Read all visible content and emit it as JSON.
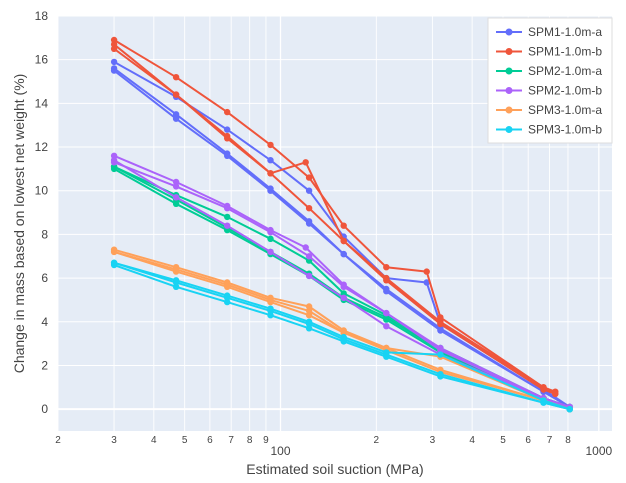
{
  "chart_data": {
    "type": "line",
    "title": "",
    "xlabel": "Estimated soil suction (MPa)",
    "ylabel": "Change in mass based on lowest net weight (%)",
    "xscale": "log",
    "xlim": [
      20,
      1100
    ],
    "ylim": [
      -1,
      18
    ],
    "grid": true,
    "legend_position": "top-right",
    "x_ticks": [
      {
        "value": 20,
        "label": "2",
        "major": false
      },
      {
        "value": 30,
        "label": "3",
        "major": false
      },
      {
        "value": 40,
        "label": "4",
        "major": false
      },
      {
        "value": 50,
        "label": "5",
        "major": false
      },
      {
        "value": 60,
        "label": "6",
        "major": false
      },
      {
        "value": 70,
        "label": "7",
        "major": false
      },
      {
        "value": 80,
        "label": "8",
        "major": false
      },
      {
        "value": 90,
        "label": "9",
        "major": false
      },
      {
        "value": 100,
        "label": "100",
        "major": true
      },
      {
        "value": 200,
        "label": "2",
        "major": false
      },
      {
        "value": 300,
        "label": "3",
        "major": false
      },
      {
        "value": 400,
        "label": "4",
        "major": false
      },
      {
        "value": 500,
        "label": "5",
        "major": false
      },
      {
        "value": 600,
        "label": "6",
        "major": false
      },
      {
        "value": 700,
        "label": "7",
        "major": false
      },
      {
        "value": 800,
        "label": "8",
        "major": false
      },
      {
        "value": 1000,
        "label": "1000",
        "major": true
      }
    ],
    "y_ticks": [
      0,
      2,
      4,
      6,
      8,
      10,
      12,
      14,
      16,
      18
    ],
    "series": [
      {
        "name": "SPM1-1.0m-a",
        "color": "#636efa",
        "lines": [
          {
            "x": [
              30,
              47,
              68,
              93,
              123,
              158,
              215,
              288,
              318,
              670,
              810
            ],
            "y": [
              15.9,
              14.3,
              12.8,
              11.4,
              10.0,
              7.9,
              6.0,
              5.8,
              3.9,
              0.9,
              0.1
            ]
          },
          {
            "x": [
              30,
              47,
              68,
              93,
              123,
              158,
              215,
              318,
              670,
              810
            ],
            "y": [
              15.6,
              13.5,
              11.7,
              10.1,
              8.6,
              7.1,
              5.5,
              3.7,
              0.8,
              0.1
            ]
          },
          {
            "x": [
              30,
              47,
              68,
              93,
              123,
              158,
              215,
              318,
              670,
              810
            ],
            "y": [
              15.5,
              13.3,
              11.6,
              10.0,
              8.5,
              7.1,
              5.4,
              3.6,
              0.8,
              0.1
            ]
          }
        ]
      },
      {
        "name": "SPM1-1.0m-b",
        "color": "#ef553b",
        "lines": [
          {
            "x": [
              30,
              47,
              68,
              93,
              123,
              158,
              215,
              288,
              318,
              670,
              730
            ],
            "y": [
              16.9,
              15.2,
              13.6,
              12.1,
              10.6,
              8.4,
              6.5,
              6.3,
              4.2,
              1.0,
              0.8
            ]
          },
          {
            "x": [
              30,
              47,
              68,
              93,
              123,
              158,
              215,
              318,
              670,
              730
            ],
            "y": [
              16.7,
              14.4,
              12.5,
              10.8,
              9.2,
              7.7,
              6.0,
              4.0,
              1.0,
              0.7
            ]
          },
          {
            "x": [
              30,
              47,
              68,
              93,
              120,
              158,
              215,
              318,
              670,
              730
            ],
            "y": [
              16.5,
              14.4,
              12.4,
              10.8,
              11.3,
              7.7,
              5.9,
              3.9,
              0.9,
              0.7
            ]
          }
        ]
      },
      {
        "name": "SPM2-1.0m-a",
        "color": "#00cc96",
        "lines": [
          {
            "x": [
              30,
              47,
              68,
              93,
              123,
              158,
              215,
              318,
              670,
              810
            ],
            "y": [
              11.1,
              9.6,
              8.3,
              7.2,
              6.2,
              5.1,
              4.2,
              2.7,
              0.5,
              0.1
            ]
          },
          {
            "x": [
              30,
              47,
              68,
              93,
              123,
              158,
              215,
              318,
              670,
              810
            ],
            "y": [
              11.0,
              9.4,
              8.2,
              7.1,
              6.1,
              5.0,
              4.1,
              2.6,
              0.5,
              0.1
            ]
          },
          {
            "x": [
              30,
              47,
              68,
              93,
              123,
              158,
              215,
              318,
              670,
              810
            ],
            "y": [
              11.1,
              9.8,
              8.8,
              7.8,
              6.8,
              5.3,
              4.3,
              2.8,
              0.5,
              0.1
            ]
          }
        ]
      },
      {
        "name": "SPM2-1.0m-b",
        "color": "#ab63fa",
        "lines": [
          {
            "x": [
              30,
              47,
              68,
              93,
              120,
              158,
              215,
              318,
              670,
              810
            ],
            "y": [
              11.6,
              10.4,
              9.3,
              8.2,
              7.4,
              5.7,
              4.4,
              2.8,
              0.5,
              0.1
            ]
          },
          {
            "x": [
              30,
              47,
              68,
              93,
              123,
              158,
              215,
              318,
              670,
              810
            ],
            "y": [
              11.4,
              9.7,
              8.4,
              7.2,
              6.1,
              5.1,
              3.8,
              2.5,
              0.5,
              0.1
            ]
          },
          {
            "x": [
              30,
              47,
              68,
              93,
              123,
              158,
              215,
              318,
              670,
              810
            ],
            "y": [
              11.3,
              10.2,
              9.2,
              8.1,
              7.0,
              5.6,
              4.4,
              2.7,
              0.5,
              0.1
            ]
          }
        ]
      },
      {
        "name": "SPM3-1.0m-a",
        "color": "#ffa15a",
        "lines": [
          {
            "x": [
              30,
              47,
              68,
              93,
              123,
              158,
              215,
              318,
              670,
              810
            ],
            "y": [
              7.3,
              6.5,
              5.8,
              5.1,
              4.7,
              3.6,
              2.8,
              1.8,
              0.4,
              0.0
            ]
          },
          {
            "x": [
              30,
              47,
              68,
              93,
              123,
              158,
              215,
              318,
              670,
              810
            ],
            "y": [
              7.2,
              6.3,
              5.6,
              4.9,
              4.3,
              3.5,
              2.7,
              1.7,
              0.4,
              0.0
            ]
          },
          {
            "x": [
              30,
              47,
              68,
              93,
              123,
              158,
              215,
              318,
              670,
              810
            ],
            "y": [
              7.2,
              6.4,
              5.7,
              5.0,
              4.5,
              3.5,
              2.8,
              2.4,
              0.4,
              0.0
            ]
          }
        ]
      },
      {
        "name": "SPM3-1.0m-b",
        "color": "#19d3f3",
        "lines": [
          {
            "x": [
              30,
              47,
              68,
              93,
              123,
              158,
              215,
              318,
              670,
              810
            ],
            "y": [
              6.7,
              5.9,
              5.2,
              4.6,
              4.0,
              3.3,
              2.6,
              2.5,
              0.4,
              0.0
            ]
          },
          {
            "x": [
              30,
              47,
              68,
              93,
              123,
              158,
              215,
              318,
              670,
              810
            ],
            "y": [
              6.6,
              5.6,
              4.9,
              4.3,
              3.7,
              3.1,
              2.4,
              1.5,
              0.3,
              0.0
            ]
          },
          {
            "x": [
              30,
              47,
              68,
              93,
              123,
              158,
              215,
              318,
              670,
              810
            ],
            "y": [
              6.7,
              5.8,
              5.1,
              4.5,
              3.9,
              3.2,
              2.5,
              1.6,
              0.3,
              0.0
            ]
          }
        ]
      }
    ]
  }
}
